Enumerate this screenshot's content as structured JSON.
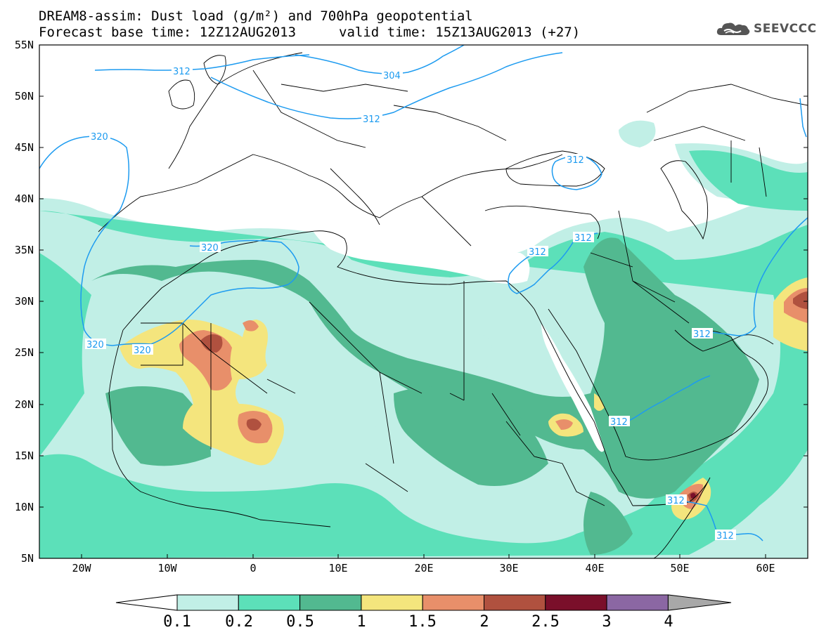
{
  "title": {
    "line1": "DREAM8-assim: Dust load (g/m²) and 700hPa geopotential",
    "base": "Forecast base time: 12Z12AUG2013",
    "valid": "valid time: 15Z13AUG2013 (+27)"
  },
  "logo": {
    "text": "SEEVCCC",
    "icon": "cloud-icon",
    "color": "#555555"
  },
  "map": {
    "lat_labels": [
      "55N",
      "50N",
      "45N",
      "40N",
      "35N",
      "30N",
      "25N",
      "20N",
      "15N",
      "10N",
      "5N"
    ],
    "lon_labels": [
      "20W",
      "10W",
      "0",
      "10E",
      "20E",
      "30E",
      "40E",
      "50E",
      "60E"
    ],
    "contour_labels": [
      "312",
      "304",
      "312",
      "320",
      "312",
      "320",
      "312",
      "312",
      "320",
      "320",
      "312",
      "312",
      "312",
      "312"
    ],
    "contour_color": "#1d9bf0"
  },
  "colorbar": {
    "labels": [
      "0.1",
      "0.2",
      "0.5",
      "1",
      "1.5",
      "2",
      "2.5",
      "3",
      "4"
    ],
    "colors": [
      "#ffffff",
      "#c1efe6",
      "#5ce0b9",
      "#52b990",
      "#f4e57d",
      "#e88f6a",
      "#b0513f",
      "#7a0f2a",
      "#8b67a3",
      "#a8a8a8"
    ]
  }
}
